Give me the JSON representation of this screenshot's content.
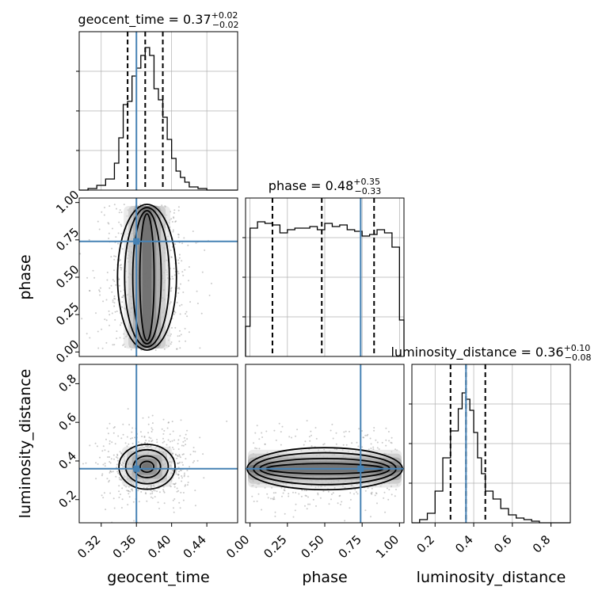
{
  "chart_data": {
    "type": "corner",
    "parameters": [
      "geocent_time",
      "phase",
      "luminosity_distance"
    ],
    "titles": [
      {
        "name": "geocent_time",
        "median": "0.37",
        "upper": "+0.02",
        "lower": "−0.02"
      },
      {
        "name": "phase",
        "median": "0.48",
        "upper": "+0.35",
        "lower": "−0.33"
      },
      {
        "name": "luminosity_distance",
        "median": "0.36",
        "upper": "+0.10",
        "lower": "−0.08"
      }
    ],
    "axes": {
      "geocent_time": {
        "range": [
          0.295,
          0.475
        ],
        "ticks": [
          0.32,
          0.36,
          0.4,
          0.44
        ],
        "tick_labels": [
          "0.32",
          "0.36",
          "0.40",
          "0.44"
        ]
      },
      "phase": {
        "range": [
          -0.03,
          1.03
        ],
        "ticks": [
          0.0,
          0.25,
          0.5,
          0.75,
          1.0
        ],
        "tick_labels": [
          "0.00",
          "0.25",
          "0.50",
          "0.75",
          "1.00"
        ]
      },
      "luminosity_distance": {
        "range": [
          0.08,
          0.9
        ],
        "ticks": [
          0.2,
          0.4,
          0.6,
          0.8
        ],
        "tick_labels": [
          "0.2",
          "0.4",
          "0.6",
          "0.8"
        ]
      }
    },
    "truths": {
      "geocent_time": 0.36,
      "phase": 0.74,
      "luminosity_distance": 0.36
    },
    "quantiles": {
      "geocent_time": [
        0.35,
        0.37,
        0.39
      ],
      "phase": [
        0.15,
        0.48,
        0.83
      ],
      "luminosity_distance": [
        0.28,
        0.36,
        0.46
      ]
    },
    "histograms": {
      "geocent_time": {
        "edges": [
          0.295,
          0.305,
          0.315,
          0.325,
          0.335,
          0.34,
          0.345,
          0.35,
          0.355,
          0.36,
          0.365,
          0.37,
          0.375,
          0.38,
          0.385,
          0.39,
          0.395,
          0.4,
          0.405,
          0.41,
          0.415,
          0.42,
          0.43,
          0.44,
          0.455,
          0.475
        ],
        "counts": [
          0.0,
          0.01,
          0.03,
          0.07,
          0.17,
          0.33,
          0.54,
          0.56,
          0.72,
          0.77,
          0.85,
          0.9,
          0.85,
          0.64,
          0.57,
          0.46,
          0.32,
          0.2,
          0.12,
          0.08,
          0.05,
          0.02,
          0.01,
          0.0,
          0.0
        ]
      },
      "phase": {
        "edges": [
          -0.03,
          0.0,
          0.05,
          0.1,
          0.15,
          0.2,
          0.25,
          0.3,
          0.35,
          0.4,
          0.45,
          0.5,
          0.55,
          0.6,
          0.65,
          0.7,
          0.75,
          0.8,
          0.85,
          0.9,
          0.95,
          1.0,
          1.03
        ],
        "counts": [
          0.19,
          0.81,
          0.85,
          0.84,
          0.83,
          0.78,
          0.8,
          0.81,
          0.81,
          0.82,
          0.8,
          0.84,
          0.82,
          0.83,
          0.8,
          0.79,
          0.76,
          0.77,
          0.8,
          0.78,
          0.69,
          0.23
        ]
      },
      "luminosity_distance": {
        "edges": [
          0.08,
          0.12,
          0.16,
          0.2,
          0.24,
          0.28,
          0.32,
          0.34,
          0.36,
          0.38,
          0.4,
          0.42,
          0.44,
          0.46,
          0.5,
          0.54,
          0.58,
          0.62,
          0.66,
          0.7,
          0.74,
          0.78,
          0.9
        ],
        "counts": [
          0.0,
          0.02,
          0.06,
          0.2,
          0.41,
          0.58,
          0.72,
          0.82,
          0.78,
          0.71,
          0.57,
          0.41,
          0.31,
          0.2,
          0.15,
          0.09,
          0.05,
          0.03,
          0.02,
          0.01,
          0.0,
          0.0
        ]
      }
    },
    "joint_2d": {
      "phase_vs_geocent_time": {
        "center_x": 0.372,
        "spread_x": 0.022,
        "y_range": [
          0.0,
          1.0
        ]
      },
      "luminosity_distance_vs_geocent_time": {
        "center_x": 0.372,
        "center_y": 0.37,
        "spread_x": 0.022,
        "spread_y": 0.09
      },
      "luminosity_distance_vs_phase": {
        "x_range": [
          0.0,
          1.0
        ],
        "center_y": 0.36,
        "spread_y": 0.08
      }
    },
    "colors": {
      "truth": "#4682b4",
      "hist": "#000000",
      "grid": "#b0b0b0",
      "points": "#8c8c8c"
    },
    "grid": true
  }
}
